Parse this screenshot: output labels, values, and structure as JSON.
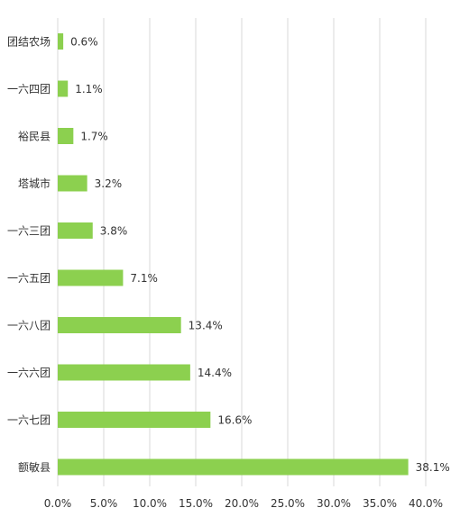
{
  "chart_data": {
    "type": "bar",
    "orientation": "horizontal",
    "title": "",
    "xlabel": "",
    "ylabel": "",
    "categories": [
      "团结农场",
      "一六四团",
      "裕民县",
      "塔城市",
      "一六三团",
      "一六五团",
      "一六八团",
      "一六六团",
      "一六七团",
      "额敏县"
    ],
    "values": [
      0.6,
      1.1,
      1.7,
      3.2,
      3.8,
      7.1,
      13.4,
      14.4,
      16.6,
      38.1
    ],
    "data_labels": [
      "0.6%",
      "1.1%",
      "1.7%",
      "3.2%",
      "3.8%",
      "7.1%",
      "13.4%",
      "14.4%",
      "16.6%",
      "38.1%"
    ],
    "xlim": [
      0,
      40
    ],
    "x_ticks": [
      0,
      5,
      10,
      15,
      20,
      25,
      30,
      35,
      40
    ],
    "x_tick_labels": [
      "0.0%",
      "5.0%",
      "10.0%",
      "15.0%",
      "20.0%",
      "25.0%",
      "30.0%",
      "35.0%",
      "40.0%"
    ],
    "grid": "vertical",
    "legend": "none",
    "bar_color": "#8CD04F",
    "grid_color": "#D9D9D9",
    "text_color": "#333333"
  }
}
